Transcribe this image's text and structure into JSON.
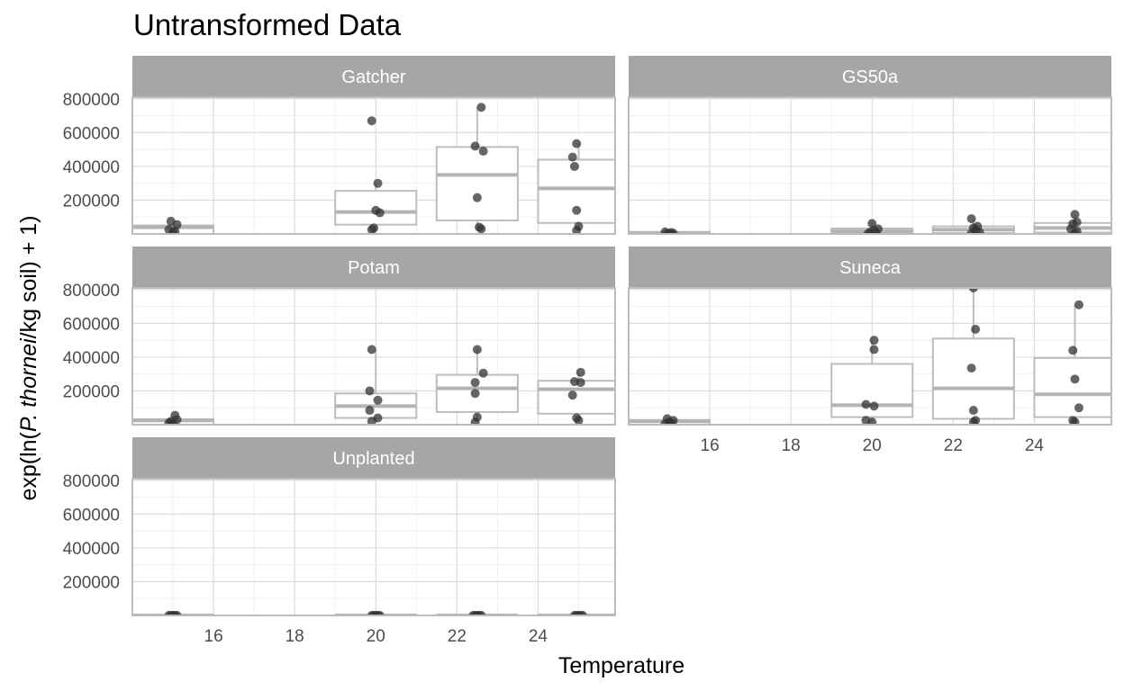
{
  "chart_data": {
    "type": "box",
    "title": "Untransformed Data",
    "xlabel": "Temperature",
    "ylabel": {
      "parts": [
        {
          "text": "exp(ln(",
          "italic": false
        },
        {
          "text": "P. thornei",
          "italic": true
        },
        {
          "text": "/kg soil) + 1)",
          "italic": false
        }
      ]
    },
    "xlim": [
      14.0,
      25.9
    ],
    "ylim": [
      0,
      810000
    ],
    "x_ticks": [
      16,
      18,
      20,
      22,
      24
    ],
    "y_ticks": [
      200000,
      400000,
      600000,
      800000
    ],
    "grid": true,
    "legend": "none",
    "colors": {
      "strip": "#a6a6a6",
      "box": "#bdbdbd",
      "median": "#b3b3b3",
      "point": "#333333",
      "grid_major": "#dcdcdc",
      "grid_minor": "#ececec"
    },
    "panels": [
      {
        "name": "Gatcher",
        "boxes": [
          {
            "x": 15,
            "q1": 0,
            "median": 40000,
            "q3": 50000,
            "whisker_low": 0,
            "whisker_high": 50000
          },
          {
            "x": 20,
            "q1": 55000,
            "median": 130000,
            "q3": 255000,
            "whisker_low": 20000,
            "whisker_high": 300000
          },
          {
            "x": 22.5,
            "q1": 80000,
            "median": 350000,
            "q3": 515000,
            "whisker_low": 30000,
            "whisker_high": 750000
          },
          {
            "x": 25,
            "q1": 65000,
            "median": 270000,
            "q3": 440000,
            "whisker_low": 20000,
            "whisker_high": 540000
          }
        ],
        "points": [
          [
            14.95,
            75000
          ],
          [
            15.1,
            55000
          ],
          [
            14.9,
            25000
          ],
          [
            15.0,
            10000
          ],
          [
            15.05,
            15000
          ],
          [
            19.9,
            670000
          ],
          [
            20.05,
            300000
          ],
          [
            20.0,
            140000
          ],
          [
            20.1,
            125000
          ],
          [
            19.95,
            35000
          ],
          [
            19.9,
            25000
          ],
          [
            22.6,
            750000
          ],
          [
            22.45,
            520000
          ],
          [
            22.65,
            490000
          ],
          [
            22.5,
            215000
          ],
          [
            22.55,
            40000
          ],
          [
            22.6,
            30000
          ],
          [
            24.95,
            535000
          ],
          [
            24.85,
            455000
          ],
          [
            24.9,
            400000
          ],
          [
            24.95,
            140000
          ],
          [
            25.0,
            45000
          ],
          [
            24.95,
            20000
          ]
        ]
      },
      {
        "name": "GS50a",
        "boxes": [
          {
            "x": 15,
            "q1": 0,
            "median": 5000,
            "q3": 12000,
            "whisker_low": 0,
            "whisker_high": 15000
          },
          {
            "x": 20,
            "q1": 3000,
            "median": 15000,
            "q3": 32000,
            "whisker_low": 0,
            "whisker_high": 65000
          },
          {
            "x": 22.5,
            "q1": 5000,
            "median": 25000,
            "q3": 45000,
            "whisker_low": 0,
            "whisker_high": 90000
          },
          {
            "x": 25,
            "q1": 8000,
            "median": 35000,
            "q3": 65000,
            "whisker_low": 0,
            "whisker_high": 115000
          }
        ],
        "points": [
          [
            14.9,
            12000
          ],
          [
            15.05,
            8000
          ],
          [
            15.1,
            4000
          ],
          [
            14.95,
            2000
          ],
          [
            15.0,
            1000
          ],
          [
            20.0,
            62000
          ],
          [
            20.15,
            30000
          ],
          [
            20.05,
            22000
          ],
          [
            19.95,
            10000
          ],
          [
            20.1,
            5000
          ],
          [
            19.9,
            2000
          ],
          [
            22.45,
            90000
          ],
          [
            22.6,
            45000
          ],
          [
            22.5,
            35000
          ],
          [
            22.55,
            22000
          ],
          [
            22.65,
            10000
          ],
          [
            22.45,
            3000
          ],
          [
            25.0,
            115000
          ],
          [
            25.05,
            70000
          ],
          [
            24.95,
            60000
          ],
          [
            24.9,
            30000
          ],
          [
            25.05,
            15000
          ],
          [
            25.0,
            3000
          ]
        ]
      },
      {
        "name": "Potam",
        "boxes": [
          {
            "x": 15,
            "q1": 0,
            "median": 25000,
            "q3": 32000,
            "whisker_low": 0,
            "whisker_high": 55000
          },
          {
            "x": 20,
            "q1": 40000,
            "median": 110000,
            "q3": 185000,
            "whisker_low": 15000,
            "whisker_high": 445000
          },
          {
            "x": 22.5,
            "q1": 75000,
            "median": 215000,
            "q3": 295000,
            "whisker_low": 15000,
            "whisker_high": 445000
          },
          {
            "x": 25,
            "q1": 65000,
            "median": 210000,
            "q3": 260000,
            "whisker_low": 20000,
            "whisker_high": 310000
          }
        ],
        "points": [
          [
            15.05,
            55000
          ],
          [
            15.1,
            30000
          ],
          [
            14.95,
            20000
          ],
          [
            14.9,
            10000
          ],
          [
            15.0,
            5000
          ],
          [
            19.9,
            445000
          ],
          [
            19.85,
            200000
          ],
          [
            20.05,
            145000
          ],
          [
            19.85,
            85000
          ],
          [
            20.05,
            40000
          ],
          [
            19.9,
            20000
          ],
          [
            22.5,
            445000
          ],
          [
            22.65,
            305000
          ],
          [
            22.45,
            250000
          ],
          [
            22.45,
            185000
          ],
          [
            22.5,
            45000
          ],
          [
            22.45,
            15000
          ],
          [
            24.9,
            255000
          ],
          [
            25.05,
            310000
          ],
          [
            24.85,
            175000
          ],
          [
            25.05,
            250000
          ],
          [
            24.95,
            40000
          ],
          [
            25.0,
            25000
          ]
        ]
      },
      {
        "name": "Suneca",
        "boxes": [
          {
            "x": 15,
            "q1": 0,
            "median": 20000,
            "q3": 28000,
            "whisker_low": 0,
            "whisker_high": 35000
          },
          {
            "x": 20,
            "q1": 45000,
            "median": 115000,
            "q3": 360000,
            "whisker_low": 15000,
            "whisker_high": 500000
          },
          {
            "x": 22.5,
            "q1": 35000,
            "median": 215000,
            "q3": 510000,
            "whisker_low": 15000,
            "whisker_high": 810000
          },
          {
            "x": 25,
            "q1": 45000,
            "median": 180000,
            "q3": 395000,
            "whisker_low": 15000,
            "whisker_high": 710000
          }
        ],
        "points": [
          [
            14.95,
            35000
          ],
          [
            15.1,
            25000
          ],
          [
            15.0,
            15000
          ],
          [
            14.9,
            5000
          ],
          [
            15.05,
            10000
          ],
          [
            20.05,
            500000
          ],
          [
            20.05,
            445000
          ],
          [
            19.85,
            120000
          ],
          [
            20.05,
            110000
          ],
          [
            19.85,
            25000
          ],
          [
            20.0,
            15000
          ],
          [
            22.5,
            810000
          ],
          [
            22.55,
            565000
          ],
          [
            22.45,
            335000
          ],
          [
            22.5,
            85000
          ],
          [
            22.55,
            25000
          ],
          [
            22.5,
            15000
          ],
          [
            25.1,
            710000
          ],
          [
            24.95,
            440000
          ],
          [
            25.0,
            270000
          ],
          [
            25.1,
            100000
          ],
          [
            24.95,
            25000
          ],
          [
            25.0,
            15000
          ]
        ]
      },
      {
        "name": "Unplanted",
        "boxes": [
          {
            "x": 15,
            "q1": 0,
            "median": 0,
            "q3": 1000,
            "whisker_low": 0,
            "whisker_high": 1000
          },
          {
            "x": 20,
            "q1": 0,
            "median": 0,
            "q3": 1000,
            "whisker_low": 0,
            "whisker_high": 1000
          },
          {
            "x": 22.5,
            "q1": 0,
            "median": 0,
            "q3": 1000,
            "whisker_low": 0,
            "whisker_high": 1000
          },
          {
            "x": 25,
            "q1": 0,
            "median": 0,
            "q3": 1000,
            "whisker_low": 0,
            "whisker_high": 1000
          }
        ],
        "points": [
          [
            14.9,
            0
          ],
          [
            15.0,
            0
          ],
          [
            15.1,
            0
          ],
          [
            14.95,
            0
          ],
          [
            15.05,
            0
          ],
          [
            19.9,
            0
          ],
          [
            20.0,
            0
          ],
          [
            20.1,
            0
          ],
          [
            19.95,
            0
          ],
          [
            20.05,
            0
          ],
          [
            22.45,
            0
          ],
          [
            22.55,
            0
          ],
          [
            22.6,
            0
          ],
          [
            22.5,
            0
          ],
          [
            22.4,
            0
          ],
          [
            24.95,
            0
          ],
          [
            25.05,
            0
          ],
          [
            25.0,
            0
          ],
          [
            24.9,
            0
          ],
          [
            25.1,
            0
          ]
        ]
      }
    ]
  }
}
